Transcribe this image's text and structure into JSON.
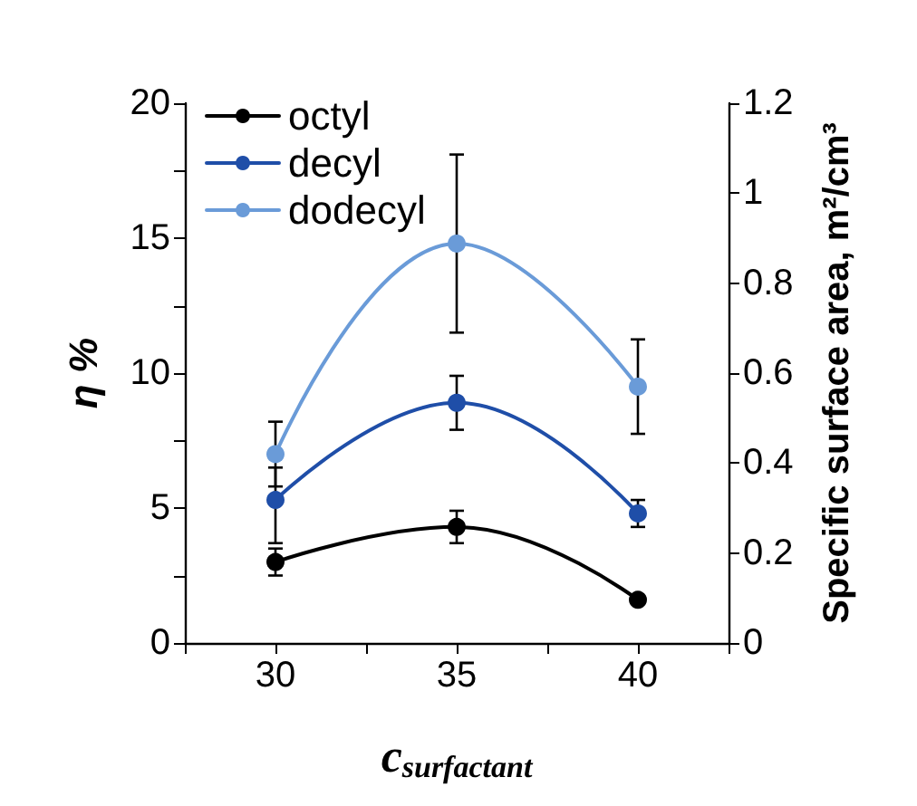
{
  "chart_data": {
    "type": "line",
    "xlabel": "c$_{surfactant}$",
    "ylabel": "η %",
    "y2label": "Specific surface area, m²/cm³",
    "xlim": [
      27.5,
      42.5
    ],
    "xticks": [
      {
        "value": 27.5,
        "label": null
      },
      30,
      {
        "value": 32.5,
        "label": null
      },
      35,
      {
        "value": 37.5,
        "label": null
      },
      40,
      {
        "value": 42.5,
        "label": null
      }
    ],
    "ylim": [
      0,
      20
    ],
    "yticks": [
      0,
      {
        "value": 2.5,
        "label": null
      },
      5,
      {
        "value": 7.5,
        "label": null
      },
      10,
      {
        "value": 12.5,
        "label": null
      },
      15,
      {
        "value": 17.5,
        "label": null
      },
      20
    ],
    "y2lim": [
      0,
      1.2
    ],
    "y2ticks": [
      0,
      0.2,
      0.4,
      0.6,
      0.8,
      1,
      1.2
    ],
    "legend": "top left",
    "marker": "circle",
    "grid": false,
    "series": [
      {
        "name": "octyl",
        "color": "#000000",
        "x": [
          30,
          35,
          40
        ],
        "values": [
          3.0,
          4.3,
          1.6
        ],
        "errors": [
          0.5,
          0.6,
          null
        ]
      },
      {
        "name": "decyl",
        "color": "#1f4ea8",
        "x": [
          30,
          35,
          40
        ],
        "values": [
          5.3,
          8.9,
          4.8
        ],
        "errors": [
          [
            3.7,
            6.5
          ],
          1.0,
          0.5
        ]
      },
      {
        "name": "dodecyl",
        "color": "#6a9bd8",
        "x": [
          30,
          35,
          40
        ],
        "values": [
          7.0,
          14.8,
          9.5
        ],
        "errors": [
          1.2,
          3.3,
          1.75
        ]
      }
    ]
  }
}
